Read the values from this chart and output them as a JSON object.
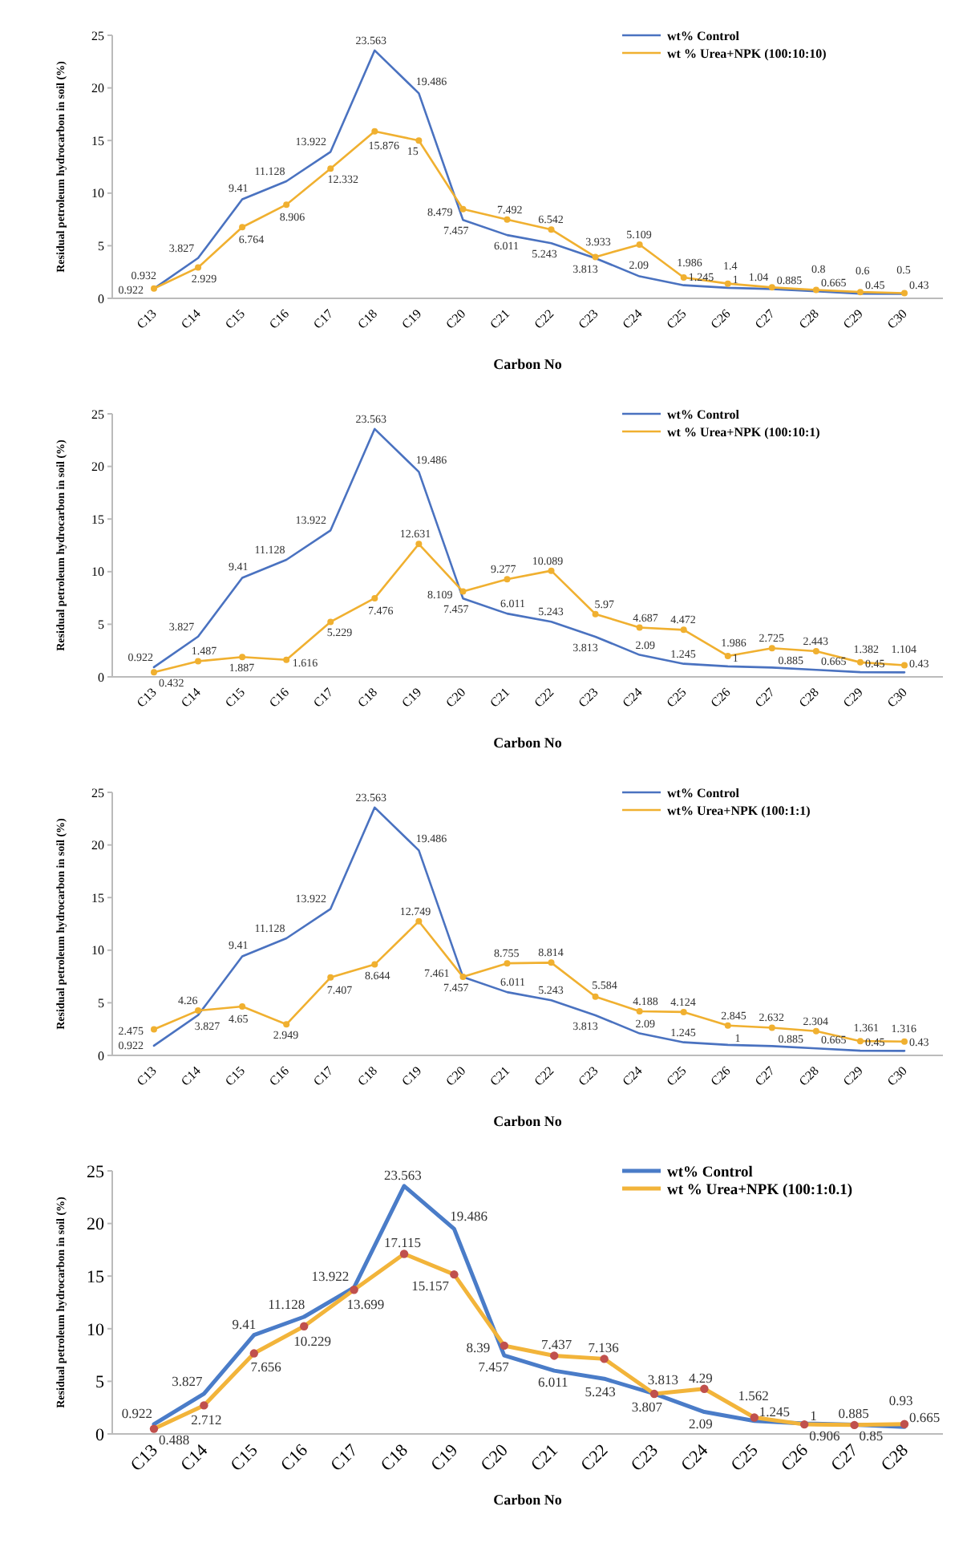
{
  "chart_data": [
    {
      "type": "line",
      "xlabel": "Carbon No",
      "ylabel": "Residual petroleum hydrocarbon in soil (%)",
      "categories": [
        "C13",
        "C14",
        "C15",
        "C16",
        "C17",
        "C18",
        "C19",
        "C20",
        "C21",
        "C22",
        "C23",
        "C24",
        "C25",
        "C26",
        "C27",
        "C28",
        "C29",
        "C30"
      ],
      "ylim": [
        0,
        25
      ],
      "yticks": [
        0,
        5,
        10,
        15,
        20,
        25
      ],
      "legend": "top right",
      "data_labels": true,
      "series": [
        {
          "name": "wt% Control",
          "color": "#4a72c0",
          "marker": "none",
          "values": [
            0.922,
            3.827,
            9.41,
            11.128,
            13.922,
            23.563,
            19.486,
            7.457,
            6.011,
            5.243,
            3.813,
            2.09,
            1.245,
            1.0,
            0.885,
            0.665,
            0.45,
            0.43
          ]
        },
        {
          "name": "wt % Urea+NPK (100:10:10)",
          "color": "#f0b030",
          "marker": "circle",
          "values": [
            0.932,
            2.929,
            6.764,
            8.906,
            12.332,
            15.876,
            15,
            8.479,
            7.492,
            6.542,
            3.933,
            5.109,
            1.986,
            1.4,
            1.04,
            0.8,
            0.6,
            0.5
          ]
        }
      ]
    },
    {
      "type": "line",
      "xlabel": "Carbon No",
      "ylabel": "Residual petroleum hydrocarbon in soil (%)",
      "categories": [
        "C13",
        "C14",
        "C15",
        "C16",
        "C17",
        "C18",
        "C19",
        "C20",
        "C21",
        "C22",
        "C23",
        "C24",
        "C25",
        "C26",
        "C27",
        "C28",
        "C29",
        "C30"
      ],
      "ylim": [
        0,
        25
      ],
      "yticks": [
        0,
        5,
        10,
        15,
        20,
        25
      ],
      "legend": "top right",
      "data_labels": true,
      "series": [
        {
          "name": "wt% Control",
          "color": "#4a72c0",
          "marker": "none",
          "values": [
            0.922,
            3.827,
            9.41,
            11.128,
            13.922,
            23.563,
            19.486,
            7.457,
            6.011,
            5.243,
            3.813,
            2.09,
            1.245,
            1.0,
            0.885,
            0.665,
            0.45,
            0.43
          ]
        },
        {
          "name": "wt % Urea+NPK (100:10:1)",
          "color": "#f0b030",
          "marker": "circle",
          "values": [
            0.432,
            1.487,
            1.887,
            1.616,
            5.229,
            7.476,
            12.631,
            8.109,
            9.277,
            10.089,
            5.97,
            4.687,
            4.472,
            1.986,
            2.725,
            2.443,
            1.382,
            1.104
          ]
        }
      ]
    },
    {
      "type": "line",
      "xlabel": "Carbon No",
      "ylabel": "Residual petroleum hydrocarbon in soil (%)",
      "categories": [
        "C13",
        "C14",
        "C15",
        "C16",
        "C17",
        "C18",
        "C19",
        "C20",
        "C21",
        "C22",
        "C23",
        "C24",
        "C25",
        "C26",
        "C27",
        "C28",
        "C29",
        "C30"
      ],
      "ylim": [
        0,
        25
      ],
      "yticks": [
        0,
        5,
        10,
        15,
        20,
        25
      ],
      "legend": "top right",
      "data_labels": true,
      "series": [
        {
          "name": "wt% Control",
          "color": "#4a72c0",
          "marker": "none",
          "values": [
            0.922,
            3.827,
            9.41,
            11.128,
            13.922,
            23.563,
            19.486,
            7.457,
            6.011,
            5.243,
            3.813,
            2.09,
            1.245,
            1.0,
            0.885,
            0.665,
            0.45,
            0.43
          ]
        },
        {
          "name": "wt% Urea+NPK (100:1:1)",
          "color": "#f0b030",
          "marker": "circle",
          "values": [
            2.475,
            4.26,
            4.65,
            2.949,
            7.407,
            8.644,
            12.749,
            7.461,
            8.755,
            8.814,
            5.584,
            4.188,
            4.124,
            2.845,
            2.632,
            2.304,
            1.361,
            1.316
          ]
        }
      ]
    },
    {
      "type": "line",
      "xlabel": "Carbon No",
      "ylabel": "Residual petroleum hydrocarbon in soil (%)",
      "categories": [
        "C13",
        "C14",
        "C15",
        "C16",
        "C17",
        "C18",
        "C19",
        "C20",
        "C21",
        "C22",
        "C23",
        "C24",
        "C25",
        "C26",
        "C27",
        "C28"
      ],
      "ylim": [
        0,
        25
      ],
      "yticks": [
        0,
        5,
        10,
        15,
        20,
        25
      ],
      "legend": "top right",
      "data_labels": true,
      "series": [
        {
          "name": "wt% Control",
          "color": "#4a7cc8",
          "marker": "none",
          "values": [
            0.922,
            3.827,
            9.41,
            11.128,
            13.922,
            23.563,
            19.486,
            7.457,
            6.011,
            5.243,
            3.813,
            2.09,
            1.245,
            1.0,
            0.885,
            0.665
          ]
        },
        {
          "name": "wt % Urea+NPK (100:1:0.1)",
          "color": "#f2b43a",
          "marker": "circle",
          "values": [
            0.488,
            2.712,
            7.656,
            10.229,
            13.699,
            17.115,
            15.157,
            8.39,
            7.437,
            7.136,
            3.807,
            4.29,
            1.562,
            0.906,
            0.85,
            0.93
          ]
        }
      ]
    }
  ]
}
